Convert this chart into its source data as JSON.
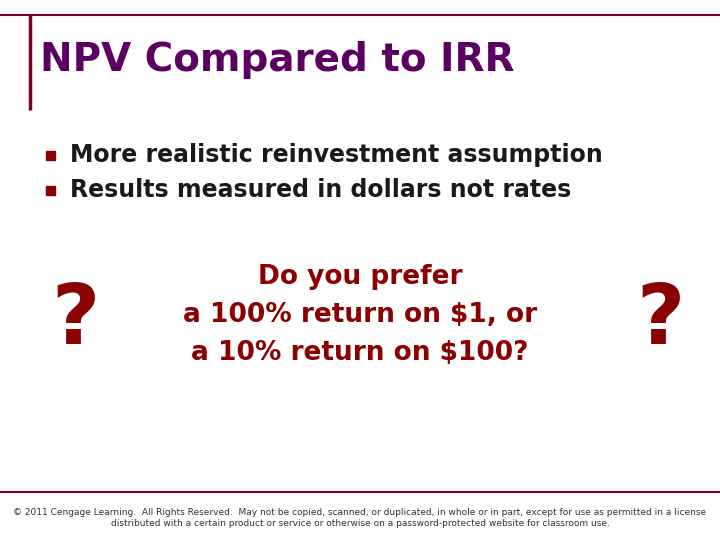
{
  "title": "NPV Compared to IRR",
  "title_color": "#5B0060",
  "title_fontsize": 28,
  "bullet_color": "#8B0000",
  "bullet_items": [
    "More realistic reinvestment assumption",
    "Results measured in dollars not rates"
  ],
  "bullet_fontsize": 17,
  "bullet_text_color": "#1a1a1a",
  "question_text": "Do you prefer\na 100% return on $1, or\na 10% return on $100?",
  "question_color": "#8B0000",
  "question_fontsize": 19,
  "question_mark": "?",
  "question_mark_color": "#8B0000",
  "question_mark_fontsize": 60,
  "footer_text": "© 2011 Cengage Learning.  All Rights Reserved.  May not be copied, scanned, or duplicated, in whole or in part, except for use as permitted in a license distributed with a certain product or service or otherwise on a password-protected website for classroom use.",
  "footer_fontsize": 6.5,
  "footer_color": "#333333",
  "background_color": "#ffffff",
  "border_color": "#7B0020",
  "title_left_line_color": "#7B0020"
}
